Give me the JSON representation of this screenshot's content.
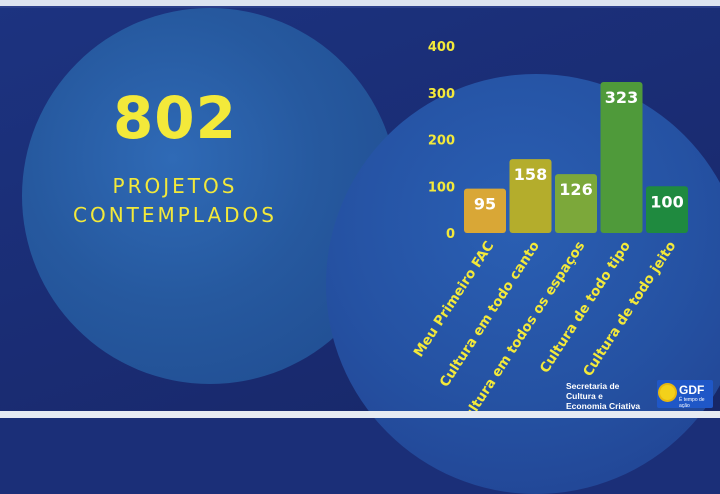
{
  "headline": {
    "number": "802",
    "line1": "PROJETOS",
    "line2": "CONTEMPLADOS"
  },
  "chart_data": {
    "type": "bar",
    "categories": [
      "Meu Primeiro FAC",
      "Cultura em todo canto",
      "Cultura em todos os espaços",
      "Cultura de todo tipo",
      "Cultura de todo jeito"
    ],
    "values": [
      95,
      158,
      126,
      323,
      100
    ],
    "data_labels": [
      "95",
      "158",
      "126",
      "323",
      "100"
    ],
    "yticks": [
      "0",
      "100",
      "200",
      "300",
      "400"
    ],
    "ylim": [
      0,
      400
    ],
    "grid": false,
    "bar_colors": [
      "#d9a736",
      "#b4ad2c",
      "#7ca83a",
      "#4f9a3a",
      "#1f8a3f"
    ]
  },
  "logo": {
    "line1": "Secretaria de",
    "line2": "Cultura e",
    "line3": "Economia Criativa",
    "brand": "GDF",
    "tagline": "É tempo de ação"
  },
  "colors": {
    "accent": "#f3e93a",
    "background": "#1b2f78"
  }
}
